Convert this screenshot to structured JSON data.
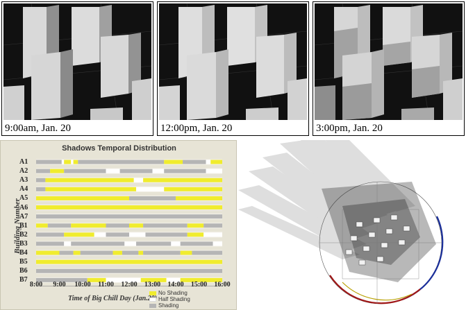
{
  "panels": [
    {
      "caption": "9:00am, Jan. 20"
    },
    {
      "caption": "12:00pm, Jan. 20"
    },
    {
      "caption": "3:00pm, Jan. 20"
    }
  ],
  "chart_data": {
    "type": "table",
    "title": "Shadows Temporal Distribution",
    "ylabel": "Building Number",
    "xlabel": "Time of  Big Chill Day (Jan.20)",
    "x_ticks": [
      "8:00",
      "9:00",
      "10:00",
      "11:00",
      "12:00",
      "13:00",
      "14:00",
      "15:00",
      "16:00"
    ],
    "xlim": [
      8,
      16
    ],
    "legend": [
      {
        "label": "No Shading",
        "color": "#f0ec2e"
      },
      {
        "label": "Half Shading",
        "color": "#ffffff"
      },
      {
        "label": "Shading",
        "color": "#b5b5b5"
      }
    ],
    "rows": [
      {
        "name": "A1",
        "segments": [
          [
            8.0,
            9.1,
            "shade"
          ],
          [
            9.1,
            9.2,
            "half"
          ],
          [
            9.2,
            9.5,
            "none"
          ],
          [
            9.5,
            9.6,
            "half"
          ],
          [
            9.6,
            9.8,
            "none"
          ],
          [
            9.8,
            13.5,
            "shade"
          ],
          [
            13.5,
            14.3,
            "none"
          ],
          [
            14.3,
            15.3,
            "shade"
          ],
          [
            15.3,
            15.5,
            "half"
          ],
          [
            15.5,
            16.0,
            "none"
          ]
        ]
      },
      {
        "name": "A2",
        "segments": [
          [
            8.0,
            8.6,
            "shade"
          ],
          [
            8.6,
            9.2,
            "none"
          ],
          [
            9.2,
            11.0,
            "shade"
          ],
          [
            11.0,
            11.6,
            "half"
          ],
          [
            11.6,
            13.0,
            "shade"
          ],
          [
            13.0,
            13.5,
            "half"
          ],
          [
            13.5,
            15.3,
            "shade"
          ],
          [
            15.3,
            16.0,
            "half"
          ]
        ]
      },
      {
        "name": "A3",
        "segments": [
          [
            8.0,
            8.4,
            "shade"
          ],
          [
            8.4,
            12.2,
            "none"
          ],
          [
            12.2,
            12.6,
            "half"
          ],
          [
            12.6,
            16.0,
            "none"
          ]
        ]
      },
      {
        "name": "A4",
        "segments": [
          [
            8.0,
            8.4,
            "shade"
          ],
          [
            8.4,
            12.3,
            "none"
          ],
          [
            12.3,
            13.5,
            "half"
          ],
          [
            13.5,
            16.0,
            "none"
          ]
        ]
      },
      {
        "name": "A5",
        "segments": [
          [
            8.0,
            12.0,
            "none"
          ],
          [
            12.0,
            14.0,
            "shade"
          ],
          [
            14.0,
            16.0,
            "none"
          ]
        ]
      },
      {
        "name": "A6",
        "segments": [
          [
            8.0,
            16.0,
            "none"
          ]
        ]
      },
      {
        "name": "A7",
        "segments": [
          [
            8.0,
            16.0,
            "shade"
          ]
        ]
      },
      {
        "name": "B1",
        "segments": [
          [
            8.0,
            8.5,
            "none"
          ],
          [
            8.5,
            9.5,
            "shade"
          ],
          [
            9.5,
            11.0,
            "none"
          ],
          [
            11.0,
            12.0,
            "shade"
          ],
          [
            12.0,
            12.6,
            "none"
          ],
          [
            12.6,
            14.5,
            "shade"
          ],
          [
            14.5,
            15.2,
            "none"
          ],
          [
            15.2,
            16.0,
            "shade"
          ]
        ]
      },
      {
        "name": "B2",
        "segments": [
          [
            8.0,
            9.2,
            "shade"
          ],
          [
            9.2,
            10.5,
            "none"
          ],
          [
            10.5,
            11.0,
            "half"
          ],
          [
            11.0,
            12.0,
            "shade"
          ],
          [
            12.0,
            12.7,
            "half"
          ],
          [
            12.7,
            14.5,
            "shade"
          ],
          [
            14.5,
            15.2,
            "none"
          ],
          [
            15.2,
            16.0,
            "half"
          ]
        ]
      },
      {
        "name": "B3",
        "segments": [
          [
            8.0,
            9.2,
            "shade"
          ],
          [
            9.2,
            9.5,
            "half"
          ],
          [
            9.5,
            11.8,
            "shade"
          ],
          [
            11.8,
            12.3,
            "half"
          ],
          [
            12.3,
            13.8,
            "shade"
          ],
          [
            13.8,
            14.2,
            "half"
          ],
          [
            14.2,
            15.6,
            "shade"
          ],
          [
            15.6,
            16.0,
            "half"
          ]
        ]
      },
      {
        "name": "B4",
        "segments": [
          [
            8.0,
            9.0,
            "none"
          ],
          [
            9.0,
            9.6,
            "shade"
          ],
          [
            9.6,
            9.9,
            "none"
          ],
          [
            9.9,
            11.3,
            "shade"
          ],
          [
            11.3,
            11.7,
            "none"
          ],
          [
            11.7,
            12.4,
            "shade"
          ],
          [
            12.4,
            12.6,
            "none"
          ],
          [
            12.6,
            14.2,
            "shade"
          ],
          [
            14.2,
            14.7,
            "none"
          ],
          [
            14.7,
            16.0,
            "shade"
          ]
        ]
      },
      {
        "name": "B5",
        "segments": [
          [
            8.0,
            16.0,
            "none"
          ]
        ]
      },
      {
        "name": "B6",
        "segments": [
          [
            8.0,
            16.0,
            "shade"
          ]
        ]
      },
      {
        "name": "B7",
        "segments": [
          [
            8.0,
            10.2,
            "shade"
          ],
          [
            10.2,
            11.0,
            "none"
          ],
          [
            11.0,
            12.5,
            "half"
          ],
          [
            12.5,
            13.6,
            "none"
          ],
          [
            13.6,
            14.2,
            "half"
          ],
          [
            14.2,
            16.0,
            "none"
          ]
        ]
      }
    ]
  }
}
